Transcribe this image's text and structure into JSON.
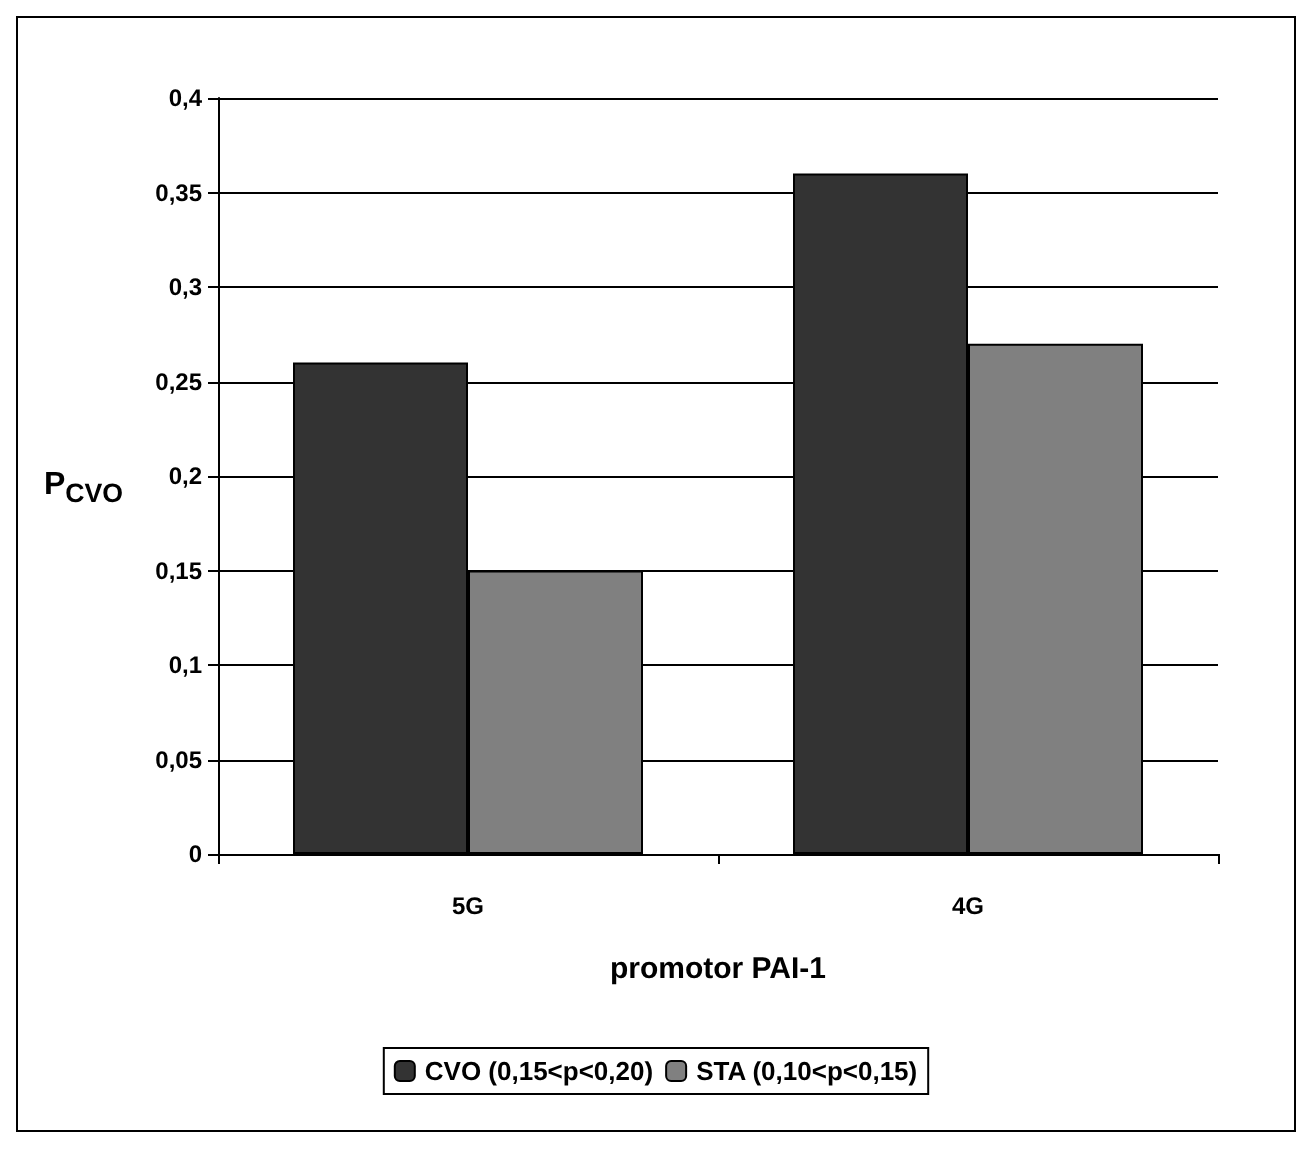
{
  "chart_data": {
    "type": "bar",
    "xlabel": "promotor PAI-1",
    "ylabel": "P$_{CVO}$",
    "categories": [
      "5G",
      "4G"
    ],
    "series": [
      {
        "name": "CVO (0,15<p<0,20)",
        "color": "#333333",
        "values": [
          0.26,
          0.36
        ]
      },
      {
        "name": "STA (0,10<p<0,15)",
        "color": "#808080",
        "values": [
          0.15,
          0.27
        ]
      }
    ],
    "ylim": [
      0,
      0.4
    ],
    "yticks": [
      {
        "value": 0,
        "label": "0"
      },
      {
        "value": 0.05,
        "label": "0,05"
      },
      {
        "value": 0.1,
        "label": "0,1"
      },
      {
        "value": 0.15,
        "label": "0,15"
      },
      {
        "value": 0.2,
        "label": "0,2"
      },
      {
        "value": 0.25,
        "label": "0,25"
      },
      {
        "value": 0.3,
        "label": "0,3"
      },
      {
        "value": 0.35,
        "label": "0,35"
      },
      {
        "value": 0.4,
        "label": "0,4"
      }
    ],
    "grid": "y",
    "legend": "bottom"
  }
}
